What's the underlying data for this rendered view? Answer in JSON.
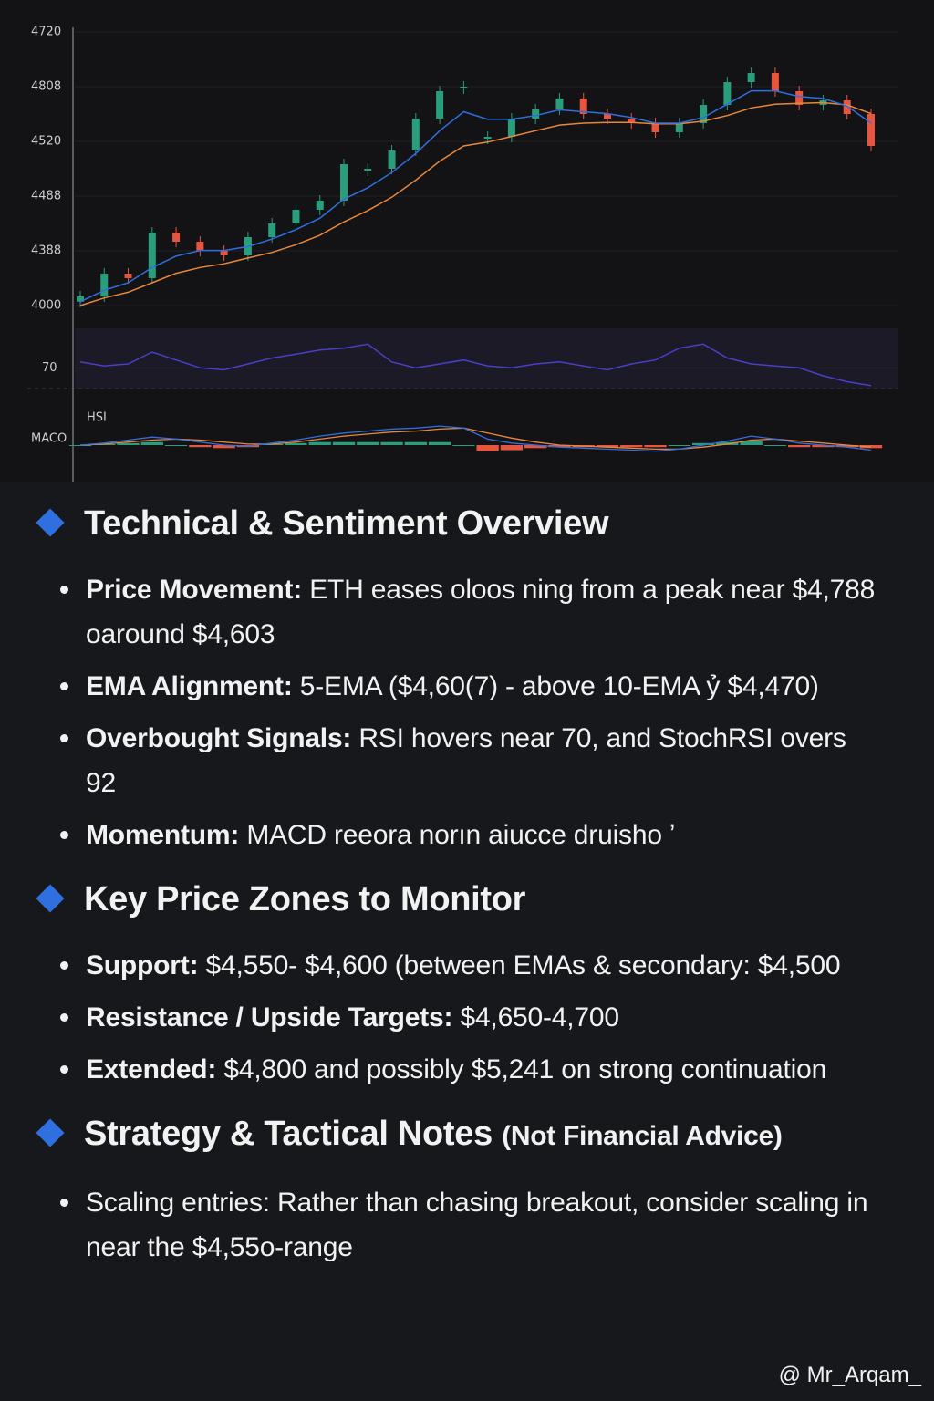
{
  "chart_data": {
    "type": "candlestick",
    "price_axis_labels": [
      "4720",
      "4808",
      "4520",
      "4488",
      "4388",
      "4000"
    ],
    "ylim": [
      4000,
      4720
    ],
    "open": [
      4010,
      4024,
      4084,
      4072,
      4192,
      4168,
      4144,
      4132,
      4180,
      4216,
      4252,
      4276,
      4360,
      4360,
      4408,
      4492,
      4576,
      4444,
      4444,
      4492,
      4516,
      4545,
      4504,
      4492,
      4480,
      4456,
      4480,
      4528,
      4588,
      4612,
      4564,
      4528,
      4540,
      4504
    ],
    "close": [
      4024,
      4084,
      4072,
      4192,
      4168,
      4144,
      4132,
      4180,
      4216,
      4252,
      4276,
      4372,
      4360,
      4408,
      4492,
      4564,
      4576,
      4444,
      4492,
      4516,
      4545,
      4504,
      4492,
      4480,
      4456,
      4480,
      4528,
      4588,
      4612,
      4564,
      4528,
      4540,
      4504,
      4420
    ],
    "up_color": "#2a9d7c",
    "down_color": "#e8553f",
    "ema_fast": {
      "color": "#2f6fe0",
      "values": [
        4010,
        4040,
        4060,
        4100,
        4130,
        4145,
        4145,
        4155,
        4175,
        4200,
        4230,
        4280,
        4310,
        4350,
        4400,
        4460,
        4510,
        4490,
        4490,
        4500,
        4515,
        4510,
        4505,
        4495,
        4480,
        4480,
        4495,
        4530,
        4565,
        4565,
        4550,
        4545,
        4525,
        4480
      ]
    },
    "ema_slow": {
      "color": "#e8873a",
      "values": [
        4000,
        4020,
        4035,
        4060,
        4085,
        4100,
        4110,
        4125,
        4140,
        4160,
        4185,
        4220,
        4250,
        4285,
        4330,
        4380,
        4420,
        4430,
        4445,
        4460,
        4475,
        4480,
        4482,
        4482,
        4478,
        4478,
        4485,
        4500,
        4520,
        4530,
        4532,
        4534,
        4528,
        4505
      ]
    },
    "rsi": {
      "label": "70",
      "level": 70,
      "lim": [
        60,
        90
      ],
      "color": "#4a3fc8",
      "values": [
        73,
        71,
        72,
        78,
        74,
        70,
        69,
        72,
        75,
        77,
        79,
        80,
        82,
        73,
        70,
        72,
        74,
        71,
        70,
        72,
        73,
        71,
        69,
        72,
        74,
        80,
        82,
        75,
        72,
        71,
        70,
        66,
        63,
        61
      ]
    },
    "rsi_title": "HSI",
    "macd": {
      "label": "MACO",
      "lim": [
        -20,
        20
      ],
      "macd_color": "#2f6fe0",
      "signal_color": "#e8873a",
      "macd": [
        0,
        2,
        5,
        8,
        6,
        3,
        0,
        -1,
        2,
        5,
        9,
        12,
        14,
        16,
        17,
        19,
        17,
        6,
        2,
        0,
        -2,
        -3,
        -4,
        -5,
        -6,
        -4,
        0,
        4,
        9,
        6,
        2,
        0,
        -2,
        -5
      ],
      "signal": [
        0,
        1,
        3,
        5,
        6,
        5,
        3,
        1,
        1,
        3,
        6,
        9,
        11,
        13,
        14,
        16,
        17,
        12,
        7,
        3,
        0,
        -1,
        -2,
        -3,
        -4,
        -4,
        -2,
        1,
        5,
        6,
        4,
        2,
        0,
        -2
      ],
      "hist": [
        0,
        1,
        2,
        3,
        0,
        -2,
        -3,
        -2,
        1,
        2,
        3,
        3,
        3,
        3,
        3,
        3,
        0,
        -6,
        -5,
        -3,
        -2,
        -2,
        -2,
        -2,
        -2,
        0,
        2,
        3,
        4,
        0,
        -2,
        -2,
        -2,
        -3
      ]
    }
  },
  "sections": [
    {
      "title": "Technical & Sentiment Overview",
      "bullets": [
        {
          "label": "Price Movement:",
          "text": " ETH eases oloos ning  from a peak near $4,788 oaround $4,603"
        },
        {
          "label": "EMA Alignment:",
          "text": " 5-EMA ($4,60(7) - above 10-EMA ỷ $4,470)"
        },
        {
          "label": "Overbought Signals:",
          "text": " RSI hovers near 70, and StochRSI overs 92"
        },
        {
          "label": "Momentum:",
          "text": " MACD reeora norın aiucce druisho ʼ"
        }
      ]
    },
    {
      "title": "Key Price Zones to Monitor",
      "bullets": [
        {
          "label": "Support:",
          "text": " $4,550- $4,600 (between EMAs & secondary: $4,500"
        },
        {
          "label": "Resistance / Upside Targets:",
          "text": " $4,650-4,700"
        },
        {
          "label": "Extended:",
          "text": " $4,800 and possibly $5,241 on strong continuation"
        }
      ]
    },
    {
      "title": "Strategy & Tactical Notes",
      "note": "(Not Financial Advice)",
      "bullets": [
        {
          "text": "Scaling entries: Rather than chasing breakout, consider scaling in near the $4,55o-range"
        }
      ]
    }
  ],
  "watermark": "@ Mr_Arqam_"
}
